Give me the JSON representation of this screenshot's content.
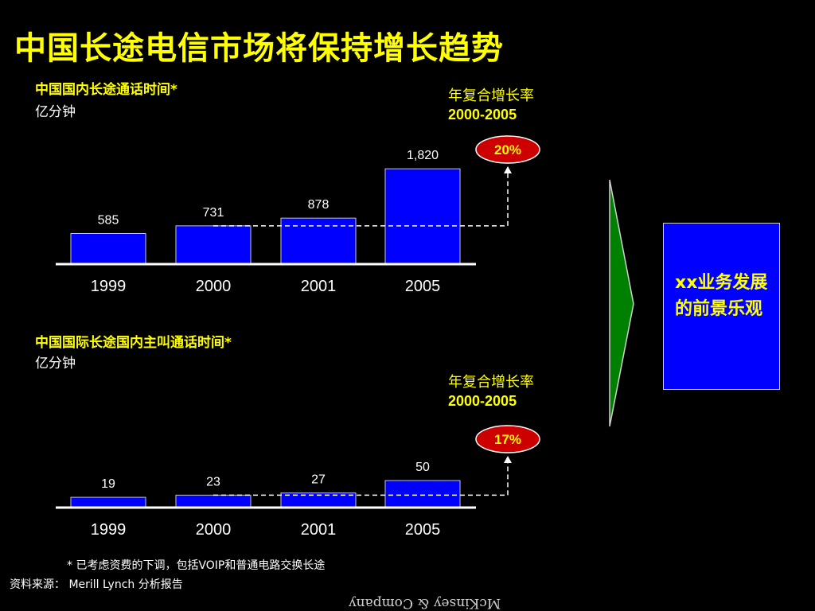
{
  "title": "中国长途电信市场将保持增长趋势",
  "cagr_label": "年复合增长率",
  "cagr_years": "2000-2005",
  "outlook": "xx业务发展的前景乐观",
  "footnote": "*    已考虑资费的下调，包括VOIP和普通电路交换长途",
  "source": "资料来源：  Merill Lynch 分析报告",
  "logo": "McKinsey & Company",
  "colors": {
    "bar": "#0000ff",
    "accent": "#ffff00",
    "bubble": "#cc0000",
    "arrow": "#008000"
  },
  "chart_data": [
    {
      "type": "bar",
      "title": "中国国内长途通话时间*",
      "unit": "亿分钟",
      "categories": [
        "1999",
        "2000",
        "2001",
        "2005"
      ],
      "values": [
        585,
        731,
        878,
        1820
      ],
      "value_labels": [
        "585",
        "731",
        "878",
        "1,820"
      ],
      "ylim": [
        0,
        2050
      ],
      "cagr": "20%"
    },
    {
      "type": "bar",
      "title": "中国国际长途国内主叫通话时间*",
      "unit": "亿分钟",
      "categories": [
        "1999",
        "2000",
        "2001",
        "2005"
      ],
      "values": [
        19,
        23,
        27,
        50
      ],
      "value_labels": [
        "19",
        "23",
        "27",
        "50"
      ],
      "ylim": [
        0,
        106
      ],
      "cagr": "17%"
    }
  ]
}
